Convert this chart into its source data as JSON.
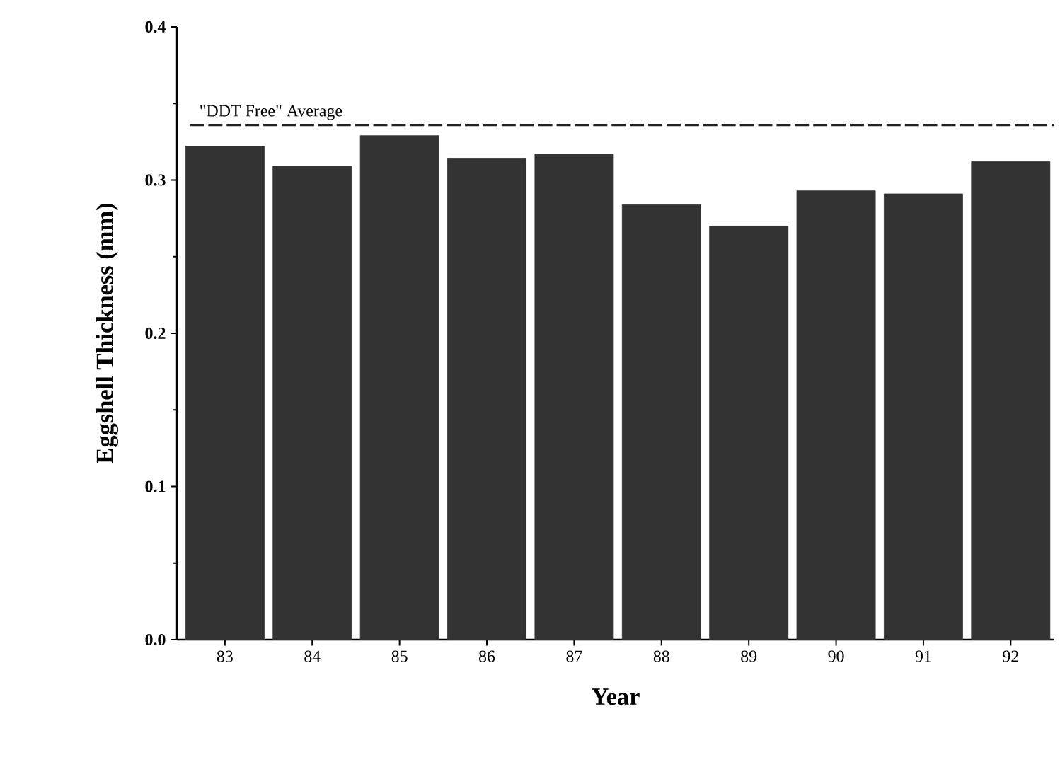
{
  "chart_data": {
    "type": "bar",
    "xlabel": "Year",
    "ylabel": "Eggshell Thickness (mm)",
    "categories": [
      "83",
      "84",
      "85",
      "86",
      "87",
      "88",
      "89",
      "90",
      "91",
      "92"
    ],
    "values": [
      0.322,
      0.309,
      0.329,
      0.314,
      0.317,
      0.284,
      0.27,
      0.293,
      0.291,
      0.312
    ],
    "color": "#333333",
    "ylim": [
      0,
      0.4
    ],
    "yticks": [
      {
        "value": 0,
        "label": "0.0"
      },
      0.1,
      0.2,
      0.3,
      0.4
    ],
    "grid": false,
    "ref_lines": [
      {
        "axis": "y",
        "value": 0.336,
        "label": "\"DDT Free\" Average",
        "color": "#222222",
        "line_style": "dashed"
      }
    ]
  }
}
